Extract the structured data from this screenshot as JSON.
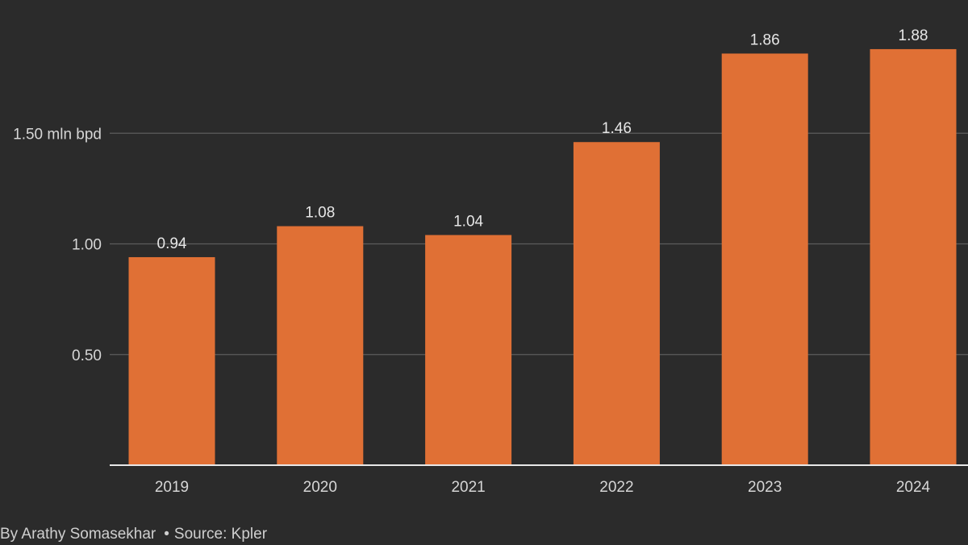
{
  "chart_data": {
    "type": "bar",
    "categories": [
      "2019",
      "2020",
      "2021",
      "2022",
      "2023",
      "2024"
    ],
    "values": [
      0.94,
      1.08,
      1.04,
      1.46,
      1.86,
      1.88
    ],
    "value_labels": [
      "0.94",
      "1.08",
      "1.04",
      "1.46",
      "1.86",
      "1.88"
    ],
    "yticks": [
      {
        "value": 0.5,
        "label": "0.50"
      },
      {
        "value": 1.0,
        "label": "1.00"
      },
      {
        "value": 1.5,
        "label": "1.50 mln bpd"
      }
    ],
    "ylim": [
      0,
      1.88
    ],
    "grid": true,
    "colors": {
      "background": "#2b2b2b",
      "bar": "#e07035",
      "gridline": "#5c5c5c",
      "baseline": "#e8e8e8",
      "label_text": "#d6d6d6",
      "value_text": "#e6e6e6"
    }
  },
  "footer": {
    "author": "By Arathy Somasekhar",
    "separator": "•",
    "source": "Source: Kpler"
  }
}
